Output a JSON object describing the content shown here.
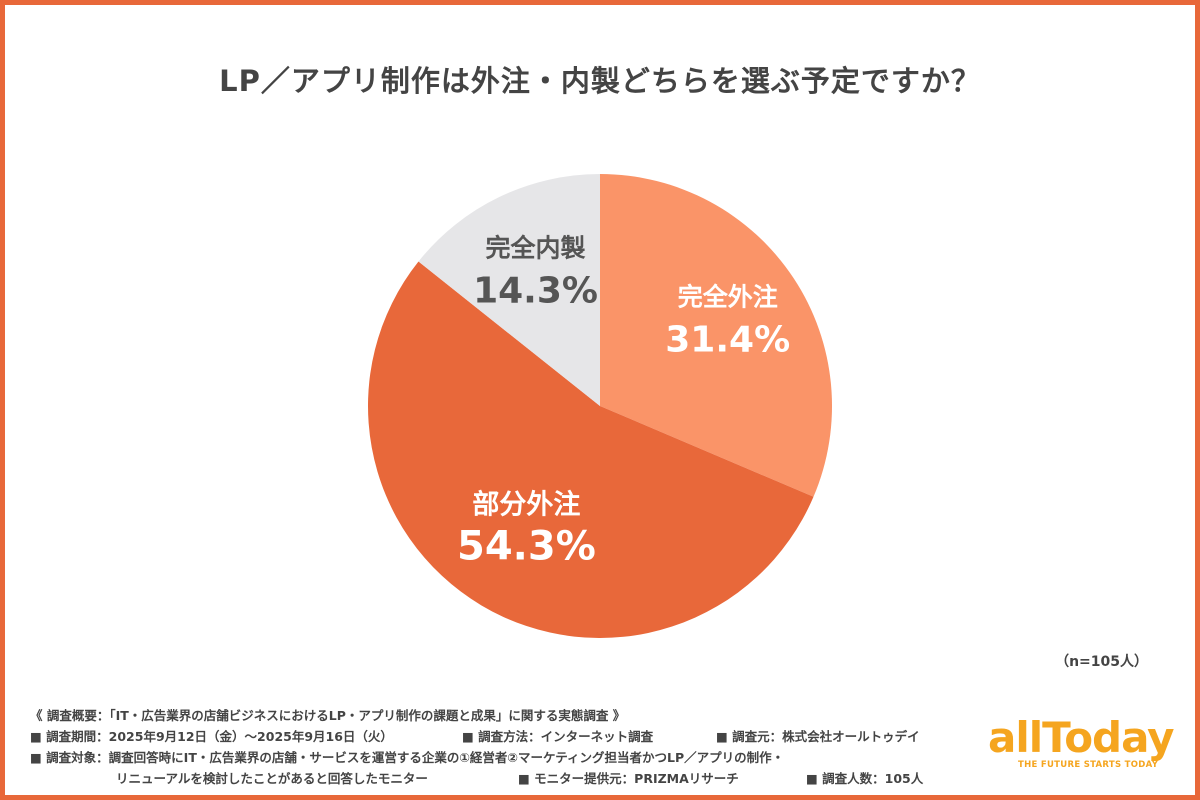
{
  "title": "LP／アプリ制作は外注・内製どちらを選ぶ予定ですか？",
  "chart_data": {
    "type": "pie",
    "title": "LP／アプリ制作は外注・内製どちらを選ぶ予定ですか？",
    "slices": [
      {
        "label": "完全外注",
        "value": 31.4,
        "value_label": "31.4%",
        "color": "#fa9468",
        "text_color": "#ffffff"
      },
      {
        "label": "部分外注",
        "value": 54.3,
        "value_label": "54.3%",
        "color": "#e8683a",
        "text_color": "#ffffff"
      },
      {
        "label": "完全内製",
        "value": 14.3,
        "value_label": "14.3%",
        "color": "#e6e6e8",
        "text_color": "#555555"
      }
    ],
    "start": "12 o'clock",
    "direction": "clockwise"
  },
  "sample_note": "（n=105人）",
  "notes": {
    "overview": "《 調査概要：「IT・広告業界の店舗ビジネスにおけるLP・アプリ制作の課題と成果」に関する実態調査 》",
    "period": "■ 調査期間：2025年9月12日（金）〜2025年9月16日（火）",
    "method": "■ 調査方法：インターネット調査",
    "source": "■ 調査元：株式会社オールトゥデイ",
    "target_line1": "■ 調査対象：調査回答時にIT・広告業界の店舗・サービスを運営する企業の①経営者②マーケティング担当者かつLP／アプリの制作・",
    "target_line2": "リニューアルを検討したことがあると回答したモニター",
    "provider": "■ モニター提供元：PRIZMAリサーチ",
    "count": "■ 調査人数：105人"
  },
  "logo": {
    "name": "allToday",
    "tagline": "THE FUTURE STARTS TODAY",
    "color": "#f5a51f"
  }
}
